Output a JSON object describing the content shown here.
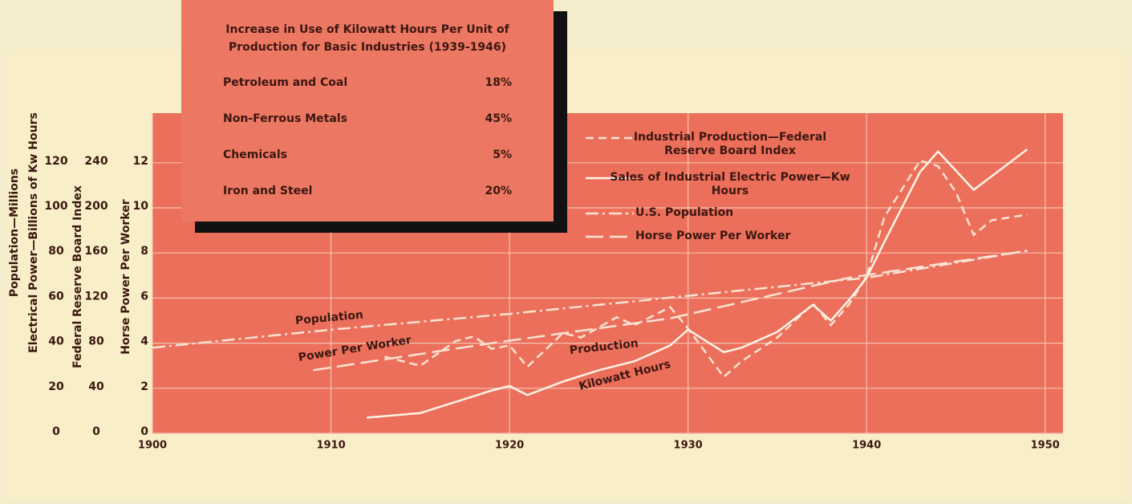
{
  "chart_data": {
    "type": "line",
    "xlim": [
      1900,
      1951
    ],
    "xticks": [
      1900,
      1910,
      1920,
      1930,
      1940,
      1950
    ],
    "ylim": [
      0,
      14.2
    ],
    "yticks": [
      0,
      2,
      4,
      6,
      8,
      10,
      12
    ],
    "ylabel": "Horse Power Per Worker",
    "y2lim": [
      0,
      284
    ],
    "y2ticks": [
      0,
      40,
      80,
      120,
      160,
      200,
      240
    ],
    "y2label": "Federal Reserve Board Index",
    "y3lim": [
      0,
      142
    ],
    "y3ticks": [
      0,
      20,
      40,
      60,
      80,
      100,
      120
    ],
    "y3labels": [
      "Population—Millions",
      "Electrical Power—Billions of Kw Hours"
    ],
    "grid": true,
    "series": [
      {
        "name": "Industrial Production—Federal Reserve Board Index",
        "style": "dashed",
        "color": "#fbe3d2",
        "axis": "y2",
        "x": [
          1913,
          1915,
          1917,
          1918,
          1919,
          1920,
          1921,
          1923,
          1924,
          1926,
          1927,
          1929,
          1930,
          1932,
          1933,
          1935,
          1937,
          1938,
          1939,
          1940,
          1941,
          1943,
          1944,
          1945,
          1946,
          1947,
          1949
        ],
        "values": [
          68,
          60,
          82,
          86,
          75,
          78,
          59,
          89,
          85,
          103,
          96,
          112,
          93,
          50,
          64,
          85,
          115,
          96,
          114,
          139,
          192,
          242,
          237,
          214,
          176,
          189,
          194
        ]
      },
      {
        "name": "Sales of Industrial Electric Power—Kw Hours",
        "style": "solid",
        "color": "#fff4e6",
        "axis": "y3",
        "x": [
          1912,
          1915,
          1917,
          1919,
          1920,
          1921,
          1923,
          1925,
          1927,
          1929,
          1930,
          1932,
          1933,
          1935,
          1937,
          1938,
          1939,
          1940,
          1941,
          1943,
          1944,
          1946,
          1949
        ],
        "values": [
          7,
          9,
          14,
          19,
          21,
          17,
          23,
          28,
          32,
          39,
          46,
          36,
          38,
          45,
          57,
          50,
          59,
          69,
          85,
          116,
          125,
          108,
          126
        ]
      },
      {
        "name": "U.S. Population",
        "style": "dashdot",
        "color": "#fbe3d2",
        "axis": "y3",
        "x": [
          1900,
          1910,
          1920,
          1930,
          1940,
          1949
        ],
        "values": [
          38,
          46,
          53,
          61,
          69,
          81
        ]
      },
      {
        "name": "Horse Power Per Worker",
        "style": "longdash",
        "color": "#fbe3d2",
        "x": [
          1909,
          1919,
          1929,
          1939,
          1949
        ],
        "values": [
          2.8,
          4.0,
          5.1,
          6.9,
          8.1
        ]
      }
    ],
    "annotations": [
      "Population",
      "Power Per Worker",
      "Production",
      "Kilowatt Hours"
    ],
    "inset": {
      "title": [
        "Increase in Use of Kilowatt Hours Per Unit of",
        "Production for Basic Industries (1939-1946)"
      ],
      "rows": [
        [
          "Petroleum and Coal",
          "18%"
        ],
        [
          "Non-Ferrous Metals",
          "45%"
        ],
        [
          "Chemicals",
          "5%"
        ],
        [
          "Iron and Steel",
          "20%"
        ]
      ]
    }
  }
}
